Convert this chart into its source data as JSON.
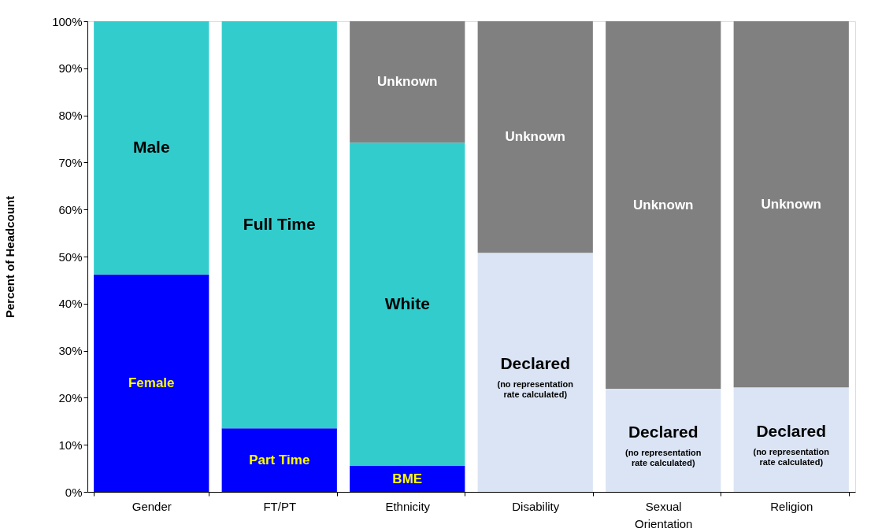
{
  "chart_data": {
    "type": "bar",
    "stacked": true,
    "ylabel": "Percent of Headcount",
    "categories": [
      "Gender",
      "FT/PT",
      "Ethnicity",
      "Disability",
      "Sexual Orientation",
      "Religion"
    ],
    "series": [
      {
        "colors": [
          "#0000ff",
          "#0000ff",
          "#0000ff",
          "#dbe4f4",
          "#dbe4f4",
          "#dbe4f4"
        ],
        "values": [
          46.2,
          13.5,
          5.5,
          50.8,
          21.9,
          22.2
        ],
        "value_labels": [
          "Female",
          "Part Time",
          "BME",
          "Declared\n(no representation\nrate calculated)",
          "Declared\n(no representation\nrate calculated)",
          "Declared\n(no representation\nrate calculated)"
        ]
      },
      {
        "color": "#33cccc",
        "values": [
          53.8,
          86.5,
          68.7,
          null,
          null,
          null
        ],
        "value_labels": [
          "Male",
          "Full Time",
          "White",
          null,
          null,
          null
        ]
      },
      {
        "color": "#808080",
        "values": [
          null,
          null,
          25.8,
          49.2,
          78.1,
          77.8
        ],
        "value_labels": [
          null,
          null,
          "Unknown",
          "Unknown",
          "Unknown",
          "Unknown"
        ]
      }
    ],
    "ylim": [
      0,
      100
    ],
    "yticks": [
      {
        "value": 0,
        "label": "0%"
      },
      {
        "value": 10,
        "label": "10%"
      },
      {
        "value": 20,
        "label": "20%"
      },
      {
        "value": 30,
        "label": "30%"
      },
      {
        "value": 40,
        "label": "40%"
      },
      {
        "value": 50,
        "label": "50%"
      },
      {
        "value": 60,
        "label": "60%"
      },
      {
        "value": 70,
        "label": "70%"
      },
      {
        "value": 80,
        "label": "80%"
      },
      {
        "value": 90,
        "label": "90%"
      },
      {
        "value": 100,
        "label": "100%"
      }
    ],
    "grid": false
  }
}
